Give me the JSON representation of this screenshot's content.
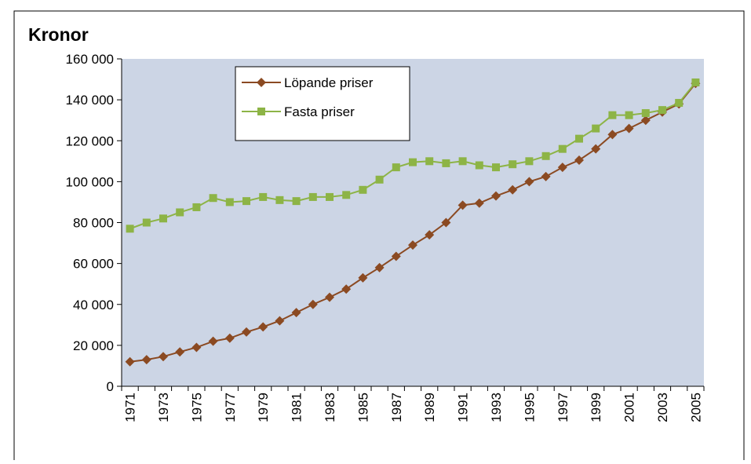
{
  "chart_data": {
    "type": "line",
    "y_label": "Kronor",
    "categories": [
      "1971",
      null,
      "1973",
      null,
      "1975",
      null,
      "1977",
      null,
      "1979",
      null,
      "1981",
      null,
      "1983",
      null,
      "1985",
      null,
      "1987",
      null,
      "1989",
      null,
      "1991",
      null,
      "1993",
      null,
      "1995",
      null,
      "1997",
      null,
      "1999",
      null,
      "2001",
      null,
      "2003",
      null,
      "2005"
    ],
    "series": [
      {
        "name": "Löpande priser",
        "color": "#8b4a22",
        "marker": "diamond",
        "values": [
          12000,
          13000,
          14500,
          16800,
          19000,
          22000,
          23500,
          26500,
          29000,
          32000,
          36000,
          40000,
          43500,
          47500,
          53000,
          58000,
          63500,
          69000,
          74000,
          80000,
          88500,
          89500,
          93000,
          96000,
          100000,
          102500,
          107000,
          110500,
          116000,
          123000,
          126000,
          130000,
          134000,
          138000,
          148000
        ]
      },
      {
        "name": "Fasta priser",
        "color": "#8db446",
        "marker": "square",
        "values": [
          77000,
          80000,
          82000,
          85000,
          87500,
          92000,
          90000,
          90500,
          92500,
          91000,
          90500,
          92500,
          92500,
          93500,
          96000,
          101000,
          107000,
          109500,
          110000,
          109000,
          110000,
          108000,
          107000,
          108500,
          110000,
          112500,
          116000,
          121000,
          126000,
          132500,
          132500,
          133500,
          135000,
          138500,
          148500
        ]
      }
    ],
    "ylim": [
      0,
      160000
    ],
    "yticks": [
      0,
      {
        "value": 20000,
        "label": "20 000"
      },
      {
        "value": 40000,
        "label": "40 000"
      },
      {
        "value": 60000,
        "label": "60 000"
      },
      {
        "value": 80000,
        "label": "80 000"
      },
      {
        "value": 100000,
        "label": "100 000"
      },
      {
        "value": 120000,
        "label": "120 000"
      },
      {
        "value": 140000,
        "label": "140 000"
      },
      {
        "value": 160000,
        "label": "160 000"
      }
    ],
    "plot_background": "#ccd5e5",
    "legend": "top-left"
  }
}
